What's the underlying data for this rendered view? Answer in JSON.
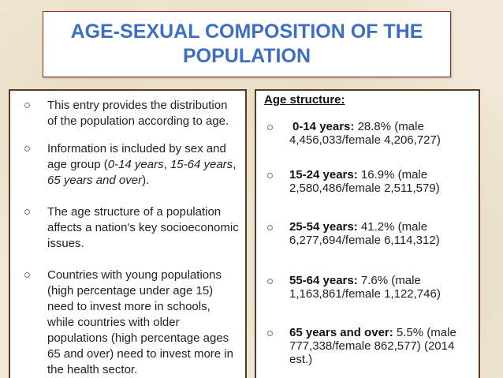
{
  "title": "AGE-SEXUAL COMPOSITION OF THE POPULATION",
  "left_items": [
    {
      "parts": [
        "This entry provides the distribution of the population according to age."
      ]
    },
    {
      "parts": [
        "Information is included by sex and age group (",
        "0-14 years",
        ", ",
        "15-64 years",
        ", ",
        "65 years and over",
        ")."
      ]
    },
    {
      "parts": [
        "The age structure of a population affects a nation's key socioeconomic issues."
      ]
    },
    {
      "parts": [
        "Countries with young populations (high percentage under age 15) need to invest more in schools, while countries with older populations (high percentage ages 65 and over) need to invest more in the health sector."
      ]
    }
  ],
  "right_heading": "Age structure:",
  "age_groups": [
    {
      "label": "0-14 years:",
      "text": " 28.8% (male 4,456,033/female 4,206,727)"
    },
    {
      "label": "15-24 years:",
      "text": " 16.9% (male 2,580,486/female 2,511,579)"
    },
    {
      "label": "25-54 years:",
      "text": " 41.2% (male 6,277,694/female 6,114,312)"
    },
    {
      "label": "55-64 years:",
      "text": " 7.6% (male 1,163,861/female 1,122,746)"
    },
    {
      "label": "65 years and over:",
      "text": " 5.5% (male 777,338/female 862,577) (2014 est.)"
    }
  ]
}
